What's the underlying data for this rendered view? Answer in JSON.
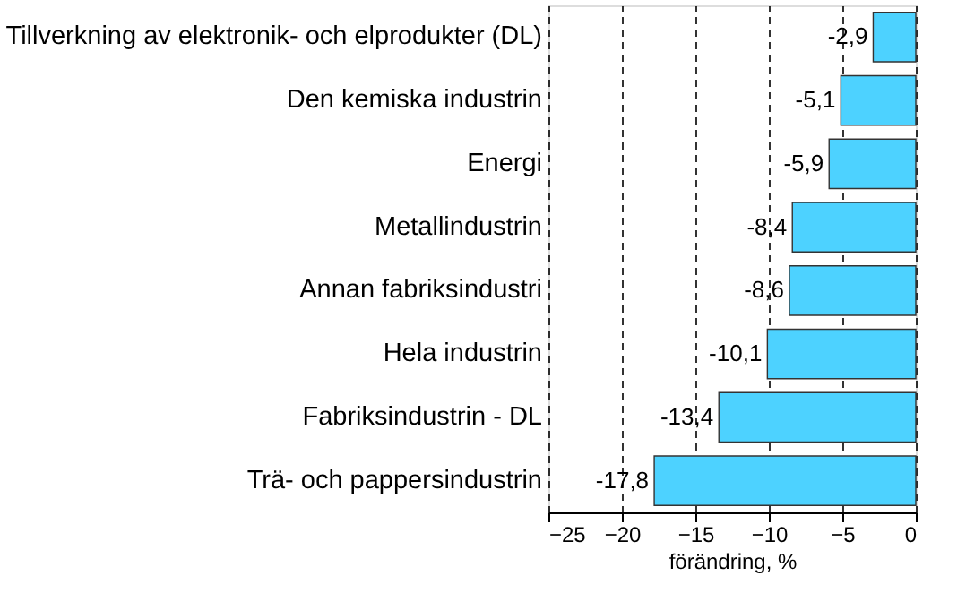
{
  "chart_data": {
    "type": "bar",
    "orientation": "horizontal",
    "xlabel": "förändring, %",
    "categories": [
      "Tillverkning av elektronik- och elprodukter (DL)",
      "Den kemiska industrin",
      "Energi",
      "Metallindustrin",
      "Annan fabriksindustri",
      "Hela industrin",
      "Fabriksindustrin - DL",
      "Trä- och pappersindustrin"
    ],
    "values": [
      -2.9,
      -5.1,
      -5.9,
      -8.4,
      -8.6,
      -10.1,
      -13.4,
      -17.8
    ],
    "value_labels": [
      "-2,9",
      "-5,1",
      "-5,9",
      "-8,4",
      "-8,6",
      "-10,1",
      "-13,4",
      "-17,8"
    ],
    "color": "#4dd2ff",
    "xlim": [
      -25,
      0
    ],
    "xticks": [
      -25,
      -20,
      -15,
      -10,
      -5,
      0
    ],
    "grid": "x"
  }
}
